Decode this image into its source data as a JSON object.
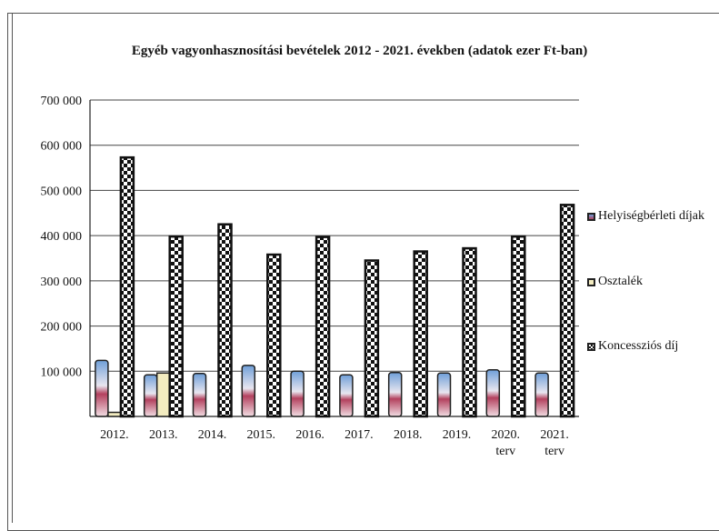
{
  "chart_data": {
    "type": "bar",
    "title": "Egyéb vagyonhasznosítási bevételek 2012 - 2021. években (adatok ezer Ft-ban)",
    "xlabel": "",
    "ylabel": "",
    "ylim": [
      0,
      700000
    ],
    "yticks": [
      "0",
      "100 000",
      "200 000",
      "300 000",
      "400 000",
      "500 000",
      "600 000",
      "700 000"
    ],
    "grid": true,
    "legend_position": "right",
    "categories": [
      "2012.",
      "2013.",
      "2014.",
      "2015.",
      "2016.",
      "2017.",
      "2018.",
      "2019.",
      "2020. terv",
      "2021. terv"
    ],
    "series": [
      {
        "name": "Helyiségbérleti díjak",
        "values": [
          124000,
          92000,
          95000,
          113000,
          100000,
          92000,
          97000,
          96000,
          103000,
          96000
        ],
        "color": "#c0607a"
      },
      {
        "name": "Osztalék",
        "values": [
          9000,
          96000,
          0,
          0,
          0,
          0,
          0,
          0,
          0,
          0
        ],
        "color": "#f3ecc0"
      },
      {
        "name": "Koncessziós díj",
        "values": [
          573000,
          398000,
          425000,
          358000,
          397000,
          345000,
          365000,
          372000,
          398000,
          468000
        ],
        "color": "#111111"
      }
    ]
  }
}
